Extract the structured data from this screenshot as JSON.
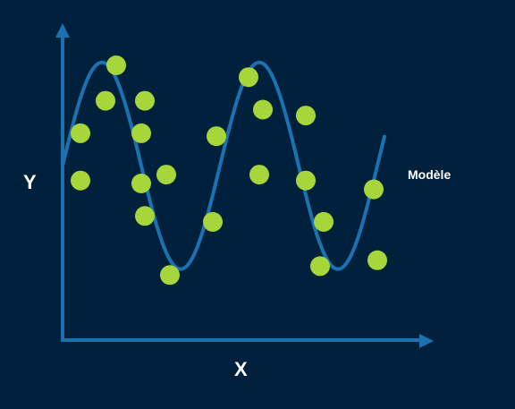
{
  "chart_data": {
    "type": "scatter",
    "xlabel": "X",
    "ylabel": "Y",
    "xlim": [
      0,
      100
    ],
    "ylim": [
      0,
      100
    ],
    "grid": false,
    "legend": "right",
    "points": [
      {
        "x": 5,
        "y": 67
      },
      {
        "x": 5,
        "y": 51
      },
      {
        "x": 12,
        "y": 78
      },
      {
        "x": 15,
        "y": 90
      },
      {
        "x": 23,
        "y": 78
      },
      {
        "x": 22,
        "y": 67
      },
      {
        "x": 22,
        "y": 50
      },
      {
        "x": 23,
        "y": 39
      },
      {
        "x": 29,
        "y": 53
      },
      {
        "x": 30,
        "y": 19
      },
      {
        "x": 43,
        "y": 66
      },
      {
        "x": 42,
        "y": 37
      },
      {
        "x": 52,
        "y": 86
      },
      {
        "x": 56,
        "y": 75
      },
      {
        "x": 55,
        "y": 53
      },
      {
        "x": 68,
        "y": 73
      },
      {
        "x": 68,
        "y": 51
      },
      {
        "x": 73,
        "y": 37
      },
      {
        "x": 72,
        "y": 22
      },
      {
        "x": 87,
        "y": 48
      },
      {
        "x": 88,
        "y": 24
      }
    ],
    "model": {
      "name": "Modèle",
      "fn": "sine",
      "x_range": [
        0,
        90
      ],
      "baseline": 56,
      "amplitude": 35,
      "period": 44,
      "phase_x": 0
    },
    "colors": {
      "background": "#00203c",
      "points": "#a7d63b",
      "model_line": "#1a73b0",
      "axes": "#1a73b0",
      "text": "#ffffff"
    }
  }
}
